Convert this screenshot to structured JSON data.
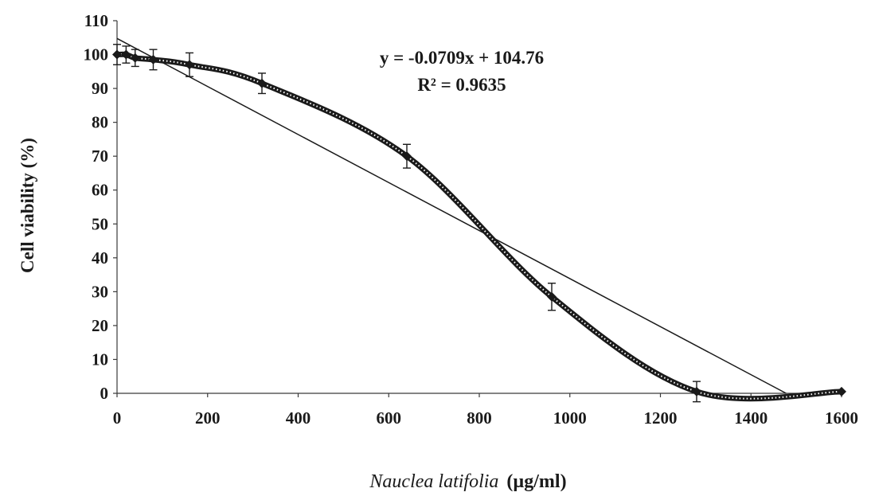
{
  "chart_data": {
    "type": "scatter",
    "title": "",
    "xlabel_italic": "Nauclea latifolia",
    "xlabel_unit": "(µg/ml)",
    "ylabel": "Cell viability (%)",
    "xlim": [
      0,
      1600
    ],
    "ylim": [
      0,
      110
    ],
    "x_ticks": [
      0,
      200,
      400,
      600,
      800,
      1000,
      1200,
      1400,
      1600
    ],
    "x_tick_labels": [
      "0",
      "200",
      "400",
      "600",
      "800",
      "1000",
      "1200",
      "1400",
      "1600"
    ],
    "y_ticks": [
      0,
      10,
      20,
      30,
      40,
      50,
      60,
      70,
      80,
      90,
      100,
      110
    ],
    "y_tick_labels": [
      "0",
      "10",
      "20",
      "30",
      "40",
      "50",
      "60",
      "70",
      "80",
      "90",
      "100",
      "110"
    ],
    "grid": false,
    "series": [
      {
        "x": [
          0,
          20,
          40,
          80,
          160,
          320,
          640,
          960,
          1280,
          1600
        ],
        "y": [
          100,
          100,
          99,
          98.5,
          97,
          91.5,
          70,
          28.5,
          0.5,
          0.5
        ],
        "error": [
          3,
          2.5,
          2.5,
          3,
          3.5,
          3,
          3.5,
          4,
          3,
          0
        ],
        "marker": "diamond",
        "color": "#1a1a1a"
      }
    ],
    "trendline": {
      "slope": -0.0709,
      "intercept": 104.76,
      "color": "#1a1a1a"
    },
    "annotations": {
      "equation": "y = -0.0709x + 104.76",
      "r_squared": "R² = 0.9635"
    }
  }
}
